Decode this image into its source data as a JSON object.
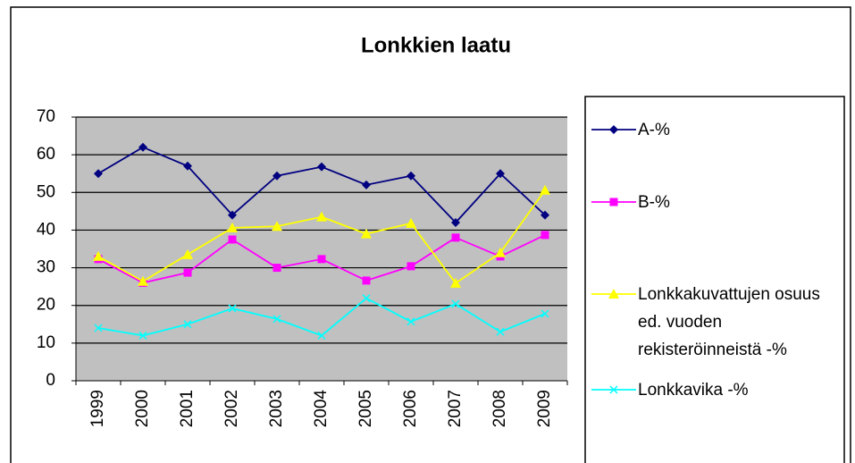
{
  "chart_data": {
    "type": "line",
    "title": "Lonkkien laatu",
    "categories": [
      "1999",
      "2000",
      "2001",
      "2002",
      "2003",
      "2004",
      "2005",
      "2006",
      "2007",
      "2008",
      "2009"
    ],
    "series": [
      {
        "name": "A-%",
        "color": "#000080",
        "marker": "diamond",
        "values": [
          55,
          62,
          57,
          44,
          54.4,
          56.8,
          52,
          54.4,
          42,
          55,
          44
        ]
      },
      {
        "name": "B-%",
        "color": "#ff00ff",
        "marker": "square",
        "values": [
          32.3,
          26,
          28.7,
          37.5,
          30,
          32.3,
          26.6,
          30.4,
          38,
          33,
          38.7
        ]
      },
      {
        "name": "Lonkkakuvattujen osuus ed. vuoden rekisteröinneistä -%",
        "color": "#ffff00",
        "marker": "triangle",
        "values": [
          33,
          26.4,
          33.5,
          40.6,
          41,
          43.5,
          39,
          41.8,
          25.9,
          34,
          50.6
        ]
      },
      {
        "name": "Lonkkavika -%",
        "color": "#00ffff",
        "marker": "x",
        "values": [
          14,
          12,
          15,
          19.2,
          16.4,
          12,
          21.9,
          15.7,
          20.4,
          13,
          17.8
        ]
      }
    ],
    "ylim": [
      0,
      70
    ],
    "yticks": [
      0,
      10,
      20,
      30,
      40,
      50,
      60,
      70
    ],
    "grid": true,
    "legend": "right"
  }
}
